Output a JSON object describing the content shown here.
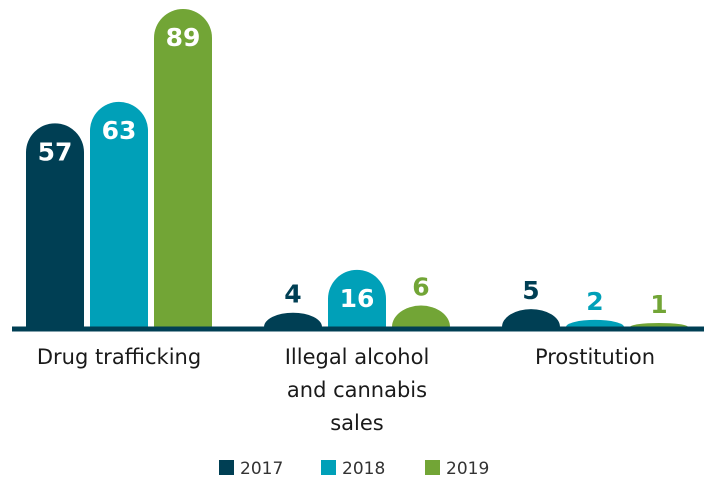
{
  "chart_data": {
    "type": "bar",
    "categories": [
      "Drug trafficking",
      "Illegal alcohol and cannabis sales",
      "Prostitution"
    ],
    "category_lines": [
      [
        "Drug trafficking"
      ],
      [
        "Illegal alcohol",
        "and cannabis",
        "sales"
      ],
      [
        "Prostitution"
      ]
    ],
    "series": [
      {
        "name": "2017",
        "values": [
          57,
          4,
          5
        ],
        "color": "#003f54"
      },
      {
        "name": "2018",
        "values": [
          63,
          16,
          2
        ],
        "color": "#00a0b8"
      },
      {
        "name": "2019",
        "values": [
          89,
          6,
          1
        ],
        "color": "#72a536"
      }
    ],
    "title": "",
    "xlabel": "",
    "ylabel": "",
    "ylim": [
      0,
      89
    ],
    "grid": false,
    "legend_position": "bottom-center"
  }
}
